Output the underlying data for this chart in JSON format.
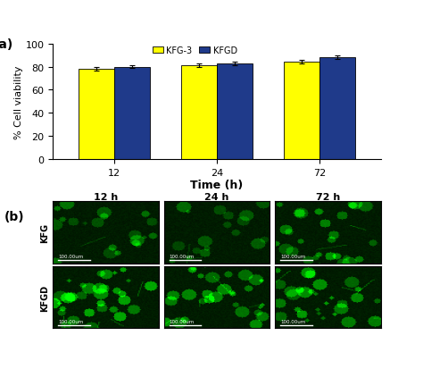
{
  "title_a": "(a)",
  "title_b": "(b)",
  "time_labels": [
    "12",
    "24",
    "72"
  ],
  "kfg3_values": [
    78,
    81,
    84
  ],
  "kfgd_values": [
    80,
    83,
    88
  ],
  "kfg3_errors": [
    1.5,
    1.5,
    1.5
  ],
  "kfgd_errors": [
    1.5,
    1.5,
    1.5
  ],
  "kfg3_color": "#FFFF00",
  "kfgd_color": "#1F3A8A",
  "ylabel": "% Cell viability",
  "xlabel": "Time (h)",
  "ylim": [
    0,
    100
  ],
  "yticks": [
    0,
    20,
    40,
    60,
    80,
    100
  ],
  "legend_kfg3": "KFG-3",
  "legend_kfgd": "KFGD",
  "row_labels": [
    "KFG",
    "KFGD"
  ],
  "col_labels": [
    "12 h",
    "24 h",
    "72 h"
  ],
  "scale_text": "100.00um",
  "bar_width": 0.35,
  "bg_color": "#FFFFFF",
  "microscopy_bg_dark": "#001800",
  "microscopy_green_light": "#00FF00",
  "kfg_brightness": [
    0.35,
    0.3,
    0.45
  ],
  "kfgd_brightness": [
    0.55,
    0.5,
    0.5
  ]
}
